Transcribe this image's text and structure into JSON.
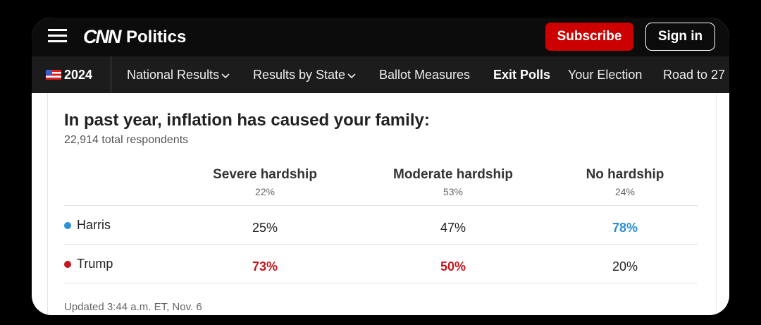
{
  "header": {
    "logo": "CNN",
    "section": "Politics",
    "subscribe": "Subscribe",
    "sign_in": "Sign in"
  },
  "nav": {
    "year": "2024",
    "items": [
      "National Results",
      "Results by State",
      "Ballot Measures",
      "Exit Polls",
      "Your Election",
      "Road to 27"
    ]
  },
  "table": {
    "title": "In past year, inflation has caused your family:",
    "subtitle": "22,914 total respondents",
    "columns": [
      {
        "name": "Severe hardship",
        "share": "22%"
      },
      {
        "name": "Moderate hardship",
        "share": "53%"
      },
      {
        "name": "No hardship",
        "share": "24%"
      }
    ],
    "rows": [
      {
        "candidate": "Harris",
        "values": [
          "25%",
          "47%",
          "78%"
        ]
      },
      {
        "candidate": "Trump",
        "values": [
          "73%",
          "50%",
          "20%"
        ]
      }
    ],
    "updated": "Updated 3:44 a.m. ET, Nov. 6"
  }
}
